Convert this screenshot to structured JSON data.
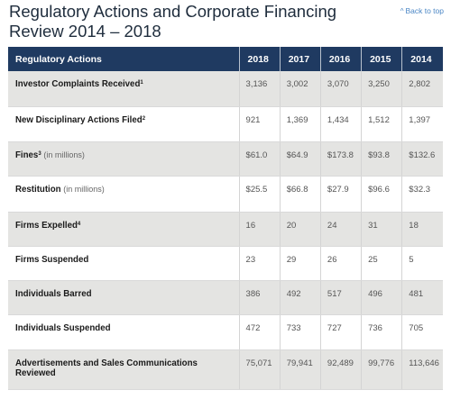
{
  "header": {
    "title": "Regulatory Actions and Corporate Financing Review 2014 – 2018",
    "back_link": "Back to top",
    "back_caret": "^"
  },
  "table": {
    "label_header": "Regulatory Actions",
    "year_headers": [
      "2018",
      "2017",
      "2016",
      "2015",
      "2014"
    ],
    "rows": [
      {
        "label": "Investor Complaints Received",
        "sup": "1",
        "note": "",
        "values": [
          "3,136",
          "3,002",
          "3,070",
          "3,250",
          "2,802"
        ]
      },
      {
        "label": "New Disciplinary Actions Filed",
        "sup": "2",
        "note": "",
        "values": [
          "921",
          "1,369",
          "1,434",
          "1,512",
          "1,397"
        ]
      },
      {
        "label": "Fines",
        "sup": "3",
        "note": "(in millions)",
        "values": [
          "$61.0",
          "$64.9",
          "$173.8",
          "$93.8",
          "$132.6"
        ]
      },
      {
        "label": "Restitution",
        "sup": "",
        "note": "(in millions)",
        "values": [
          "$25.5",
          "$66.8",
          "$27.9",
          "$96.6",
          "$32.3"
        ]
      },
      {
        "label": "Firms Expelled",
        "sup": "4",
        "note": "",
        "values": [
          "16",
          "20",
          "24",
          "31",
          "18"
        ]
      },
      {
        "label": "Firms Suspended",
        "sup": "",
        "note": "",
        "values": [
          "23",
          "29",
          "26",
          "25",
          "5"
        ]
      },
      {
        "label": "Individuals Barred",
        "sup": "",
        "note": "",
        "values": [
          "386",
          "492",
          "517",
          "496",
          "481"
        ]
      },
      {
        "label": "Individuals Suspended",
        "sup": "",
        "note": "",
        "values": [
          "472",
          "733",
          "727",
          "736",
          "705"
        ]
      },
      {
        "label": "Advertisements and Sales Communications Reviewed",
        "sup": "",
        "note": "",
        "values": [
          "75,071",
          "79,941",
          "92,489",
          "99,776",
          "113,646"
        ]
      }
    ]
  }
}
